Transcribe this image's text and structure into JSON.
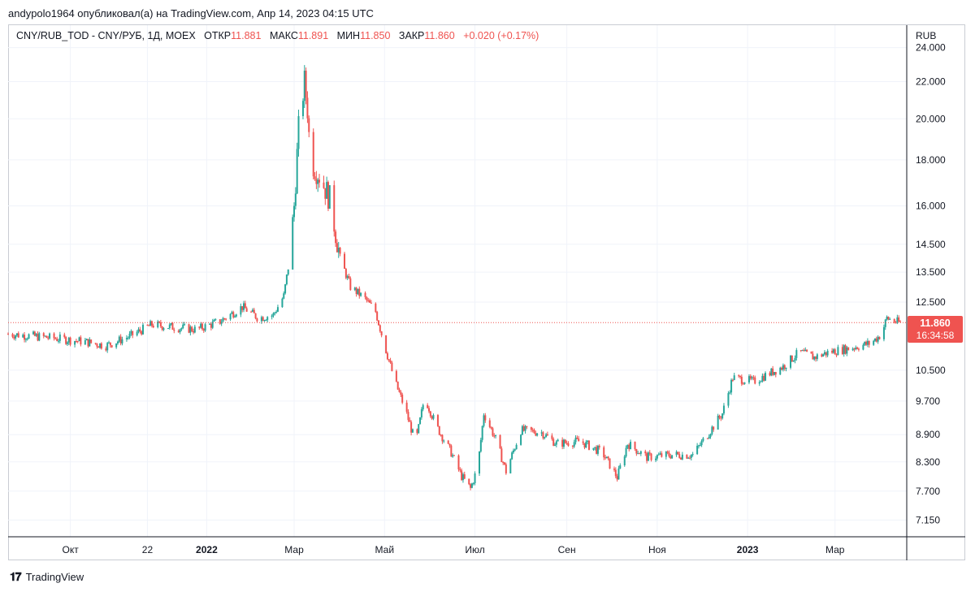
{
  "header": {
    "published_by": "andypolo1964 опубликовал(а) на TradingView.com, Апр 14, 2023 04:15 UTC"
  },
  "legend": {
    "symbol": "CNY/RUB_TOD - CNY/РУБ, 1Д, MOEX",
    "open_label": "ОТКР",
    "open": "11.881",
    "high_label": "МАКС",
    "high": "11.891",
    "low_label": "МИН",
    "low": "11.850",
    "close_label": "ЗАКР",
    "close": "11.860",
    "change": "+0.020 (+0.17%)"
  },
  "price_label": {
    "value": "11.860",
    "countdown": "16:34:58"
  },
  "brand": {
    "name": "TradingView"
  },
  "colors": {
    "up": "#26a69a",
    "down": "#ef5350",
    "grid": "#f0f3fa",
    "axis": "#787b86"
  },
  "chart_data": {
    "type": "candlestick",
    "currency": "RUB",
    "y_scale": "log",
    "y_ticks": [
      "24.000",
      "22.000",
      "20.000",
      "18.000",
      "16.000",
      "14.500",
      "13.500",
      "12.500",
      "10.500",
      "9.700",
      "8.900",
      "8.300",
      "7.700",
      "7.150"
    ],
    "x_ticks": [
      {
        "label": "Окт",
        "date": "2021-10-01"
      },
      {
        "label": "22",
        "date": "2021-11-22"
      },
      {
        "label": "2022",
        "date": "2022-01-01",
        "bold": true
      },
      {
        "label": "Мар",
        "date": "2022-03-01"
      },
      {
        "label": "Май",
        "date": "2022-05-01"
      },
      {
        "label": "Июл",
        "date": "2022-07-01"
      },
      {
        "label": "Сен",
        "date": "2022-09-01"
      },
      {
        "label": "Ноя",
        "date": "2022-11-01"
      },
      {
        "label": "2023",
        "date": "2023-01-01",
        "bold": true
      },
      {
        "label": "Мар",
        "date": "2023-03-01"
      }
    ],
    "x_range": [
      "2021-08-20",
      "2023-04-14"
    ],
    "last_price": 11.86,
    "trend": [
      [
        "2021-08-20",
        11.52
      ],
      [
        "2021-09-15",
        11.42
      ],
      [
        "2021-10-10",
        11.3
      ],
      [
        "2021-10-25",
        11.18
      ],
      [
        "2021-11-10",
        11.45
      ],
      [
        "2021-11-25",
        11.8
      ],
      [
        "2021-12-10",
        11.72
      ],
      [
        "2021-12-25",
        11.65
      ],
      [
        "2022-01-10",
        11.9
      ],
      [
        "2022-01-25",
        12.35
      ],
      [
        "2022-02-05",
        12.0
      ],
      [
        "2022-02-15",
        12.1
      ],
      [
        "2022-02-22",
        12.7
      ],
      [
        "2022-02-26",
        14.0
      ],
      [
        "2022-03-01",
        16.0
      ],
      [
        "2022-03-04",
        19.5
      ],
      [
        "2022-03-08",
        22.0
      ],
      [
        "2022-03-10",
        20.5
      ],
      [
        "2022-03-12",
        18.0
      ],
      [
        "2022-03-18",
        17.3
      ],
      [
        "2022-03-25",
        16.3
      ],
      [
        "2022-04-01",
        14.0
      ],
      [
        "2022-04-08",
        13.0
      ],
      [
        "2022-04-18",
        12.6
      ],
      [
        "2022-04-25",
        12.2
      ],
      [
        "2022-05-01",
        11.2
      ],
      [
        "2022-05-08",
        10.2
      ],
      [
        "2022-05-15",
        9.5
      ],
      [
        "2022-05-22",
        8.7
      ],
      [
        "2022-05-28",
        9.8
      ],
      [
        "2022-06-05",
        9.1
      ],
      [
        "2022-06-15",
        8.5
      ],
      [
        "2022-06-22",
        8.0
      ],
      [
        "2022-06-28",
        7.75
      ],
      [
        "2022-07-03",
        8.2
      ],
      [
        "2022-07-07",
        9.4
      ],
      [
        "2022-07-15",
        8.8
      ],
      [
        "2022-07-22",
        8.1
      ],
      [
        "2022-08-01",
        9.0
      ],
      [
        "2022-08-15",
        8.95
      ],
      [
        "2022-08-25",
        8.7
      ],
      [
        "2022-09-10",
        8.75
      ],
      [
        "2022-09-25",
        8.5
      ],
      [
        "2022-10-05",
        7.98
      ],
      [
        "2022-10-12",
        8.7
      ],
      [
        "2022-10-25",
        8.4
      ],
      [
        "2022-11-10",
        8.45
      ],
      [
        "2022-11-25",
        8.45
      ],
      [
        "2022-12-05",
        8.9
      ],
      [
        "2022-12-15",
        9.4
      ],
      [
        "2022-12-22",
        10.3
      ],
      [
        "2023-01-05",
        10.2
      ],
      [
        "2023-01-15",
        10.4
      ],
      [
        "2023-01-25",
        10.6
      ],
      [
        "2023-02-05",
        11.0
      ],
      [
        "2023-02-15",
        10.85
      ],
      [
        "2023-02-25",
        11.0
      ],
      [
        "2023-03-10",
        11.1
      ],
      [
        "2023-03-25",
        11.25
      ],
      [
        "2023-04-01",
        11.5
      ],
      [
        "2023-04-05",
        12.0
      ],
      [
        "2023-04-10",
        11.9
      ],
      [
        "2023-04-14",
        11.86
      ]
    ]
  }
}
